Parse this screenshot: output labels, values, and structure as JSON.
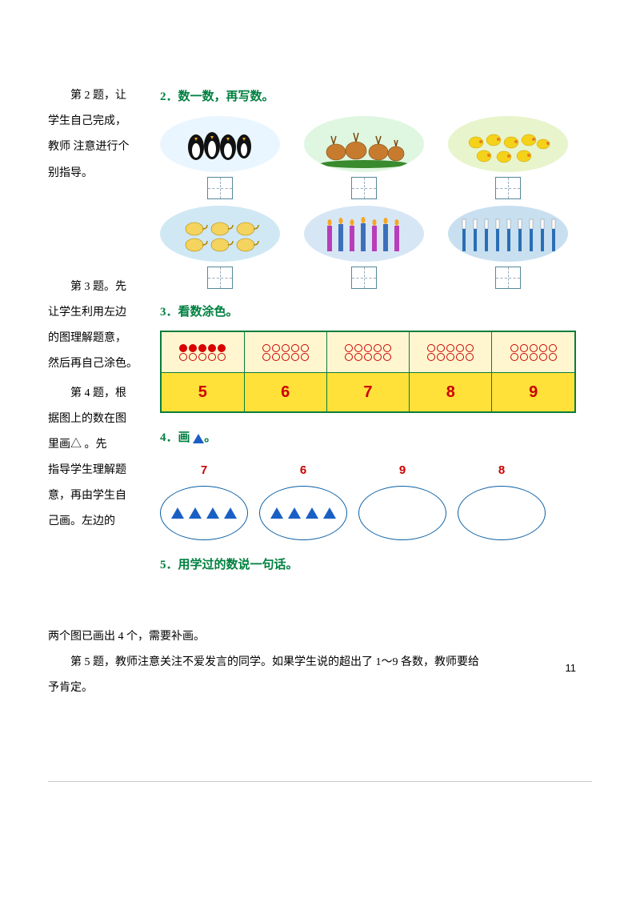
{
  "left_notes": {
    "q2_a": "第 2 题，让",
    "q2_b": "学生自己完成，",
    "q2_c": "教师 注意进行个",
    "q2_d": "别指导。",
    "q3_a": "第  3 题。先",
    "q3_b": "让学生利用左边",
    "q3_c": "的图理解题意，",
    "q3_d": "然后再自己涂色。",
    "q4_a": "第 4 题，根",
    "q4_b": "据图上的数在图",
    "q4_c": "里画△ 。先",
    "q4_d": "指导学生理解题",
    "q4_e": "意，再由学生自",
    "q4_f": "己画。左边的"
  },
  "q2": {
    "title": "2．数一数，再写数。",
    "items_row1": [
      "企鹅",
      "梅花鹿",
      "小鸭子"
    ],
    "items_row2": [
      "茶壶",
      "蜡烛",
      "牙刷"
    ],
    "bgcolors_row1": [
      "#eaf6ff",
      "#dff6e0",
      "#e8f4cc"
    ],
    "bgcolors_row2": [
      "#cfe8f4",
      "#d6e6f5",
      "#c8dff0"
    ]
  },
  "q3": {
    "title": "3．看数涂色。",
    "numbers": [
      "5",
      "6",
      "7",
      "8",
      "9"
    ],
    "filled_counts": [
      5,
      0,
      0,
      0,
      0
    ],
    "colors": {
      "border": "#0a7d3c",
      "num_bg": "#ffe13a",
      "dot": "#d00000"
    }
  },
  "q4": {
    "title_prefix": "4．画 ",
    "title_suffix": "。",
    "ovals": [
      {
        "num": "7",
        "triangles": 4
      },
      {
        "num": "6",
        "triangles": 4
      },
      {
        "num": "9",
        "triangles": 0
      },
      {
        "num": "8",
        "triangles": 0
      }
    ]
  },
  "q5": {
    "title": "5．用学过的数说一句话。"
  },
  "page_number": "11",
  "bottom": {
    "p1": "两个图已画出 4 个，需要补画。",
    "p2": "第 5 题，教师注意关注不爱发言的同学。如果学生说的超出了 1～9 各数，教师要给",
    "p3": "予肯定。"
  }
}
